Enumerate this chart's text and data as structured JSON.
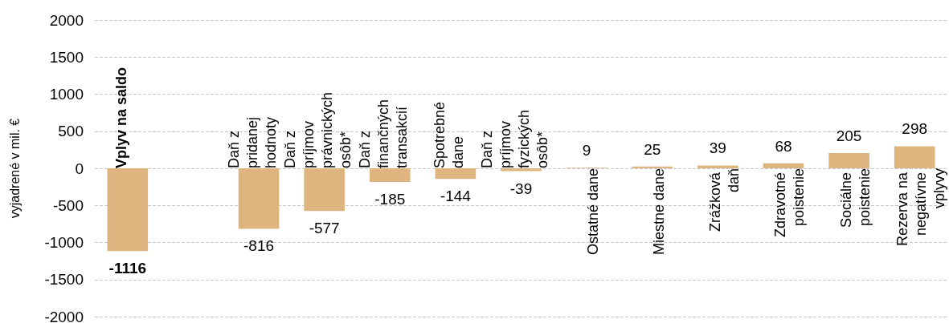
{
  "chart_data": {
    "type": "bar",
    "ylabel": "vyjadrené v mil. €",
    "categories": [
      "Vplyv na saldo",
      null,
      "Daň z pridanej hodnoty",
      "Daň z príjmov právnických osôb*",
      "Daň z finančných transakcií",
      "Spotrebné dane",
      "Daň z príjmov fyzických osôb*",
      "Ostatné dane",
      "Miestne dane",
      "Zrážková daň",
      "Zdravotné poistenie",
      "Sociálne poistenie",
      "Rezerva na negatívne vplyvy"
    ],
    "values": [
      -1116,
      null,
      -816,
      -577,
      -185,
      -144,
      -39,
      9,
      25,
      39,
      68,
      205,
      298
    ],
    "color": "#deb57f",
    "data_labels": true,
    "grid": "y",
    "ylim": [
      -2000,
      2000
    ],
    "yticks": [
      -2000,
      -1500,
      -1000,
      -500,
      0,
      500,
      1000,
      1500,
      2000
    ]
  }
}
